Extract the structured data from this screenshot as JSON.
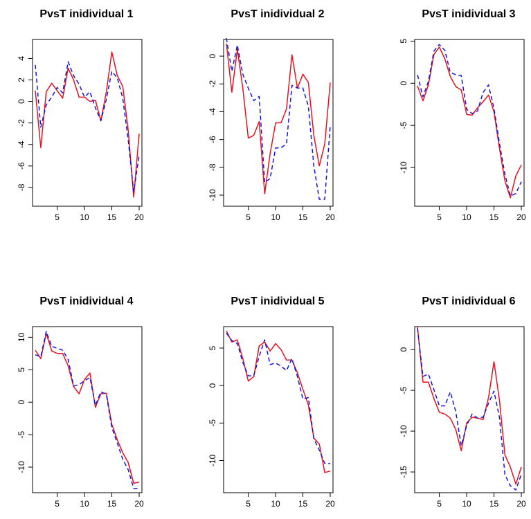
{
  "colors": {
    "predicted": "#e8111d",
    "true": "#1414e0",
    "axis": "#000000"
  },
  "chart_data": [
    {
      "type": "line",
      "title": "PvsT inidividual 1",
      "x": [
        1,
        2,
        3,
        4,
        5,
        6,
        7,
        8,
        9,
        10,
        11,
        12,
        13,
        14,
        15,
        16,
        17,
        18,
        19,
        20
      ],
      "xticks": [
        5,
        10,
        15,
        20
      ],
      "yticks": [
        -8,
        -6,
        -4,
        -2,
        0,
        2,
        4
      ],
      "ylim": [
        -9.1,
        4.8
      ],
      "series": [
        {
          "style": "solid",
          "color": "#e8111d",
          "values": [
            1.0,
            -4.3,
            0.9,
            1.7,
            1.0,
            0.3,
            3.1,
            2.0,
            0.4,
            0.4,
            0.0,
            0.1,
            -1.8,
            0.9,
            4.6,
            2.4,
            1.4,
            -2.7,
            -8.9,
            -3.0
          ]
        },
        {
          "style": "dashed",
          "color": "#1414e0",
          "values": [
            3.4,
            -2.4,
            -0.3,
            0.4,
            1.3,
            0.8,
            3.7,
            2.4,
            1.6,
            0.4,
            0.9,
            -0.6,
            -1.8,
            0.2,
            2.8,
            2.2,
            0.3,
            -3.6,
            -8.4,
            -5.0
          ]
        }
      ]
    },
    {
      "type": "line",
      "title": "PvsT inidividual 2",
      "x": [
        1,
        2,
        3,
        4,
        5,
        6,
        7,
        8,
        9,
        10,
        11,
        12,
        13,
        14,
        15,
        16,
        17,
        18,
        19,
        20
      ],
      "xticks": [
        5,
        10,
        15,
        20
      ],
      "yticks": [
        -10,
        -8,
        -6,
        -4,
        -2,
        0
      ],
      "ylim": [
        -10.3,
        1.3
      ],
      "series": [
        {
          "style": "solid",
          "color": "#e8111d",
          "values": [
            0.9,
            -2.6,
            0.5,
            -2.3,
            -5.9,
            -5.7,
            -4.7,
            -9.9,
            -7.0,
            -4.8,
            -4.8,
            -3.8,
            0.1,
            -2.3,
            -1.3,
            -1.9,
            -5.7,
            -7.9,
            -6.3,
            -1.9
          ]
        },
        {
          "style": "dashed",
          "color": "#1414e0",
          "values": [
            1.3,
            -1.1,
            0.8,
            -1.3,
            -2.3,
            -3.2,
            -2.9,
            -9.1,
            -8.8,
            -6.6,
            -6.6,
            -6.3,
            -2.1,
            -2.3,
            -2.3,
            -3.6,
            -7.9,
            -10.3,
            -10.3,
            -5.0
          ]
        }
      ]
    },
    {
      "type": "line",
      "title": "PvsT inidividual 3",
      "x": [
        1,
        2,
        3,
        4,
        5,
        6,
        7,
        8,
        9,
        10,
        11,
        12,
        13,
        14,
        15,
        16,
        17,
        18,
        19,
        20
      ],
      "xticks": [
        5,
        10,
        15,
        20
      ],
      "yticks": [
        -10,
        -5,
        0,
        5
      ],
      "ylim": [
        -13.7,
        5.2
      ],
      "series": [
        {
          "style": "solid",
          "color": "#e8111d",
          "values": [
            -0.3,
            -2.1,
            -0.2,
            3.4,
            4.3,
            2.9,
            0.8,
            -0.4,
            -0.8,
            -3.7,
            -3.8,
            -2.9,
            -2.2,
            -1.4,
            -3.4,
            -7.7,
            -11.6,
            -13.6,
            -11.0,
            -9.7
          ]
        },
        {
          "style": "dashed",
          "color": "#1414e0",
          "values": [
            1.0,
            -1.6,
            0.2,
            3.8,
            4.6,
            3.9,
            1.3,
            1.0,
            0.9,
            -3.1,
            -3.6,
            -3.3,
            -1.1,
            -0.2,
            -3.0,
            -7.1,
            -10.8,
            -13.4,
            -13.1,
            -11.7
          ]
        }
      ]
    },
    {
      "type": "line",
      "title": "PvsT inidividual 4",
      "x": [
        1,
        2,
        3,
        4,
        5,
        6,
        7,
        8,
        9,
        10,
        11,
        12,
        13,
        14,
        15,
        16,
        17,
        18,
        19,
        20
      ],
      "xticks": [
        5,
        10,
        15,
        20
      ],
      "yticks": [
        -10,
        -5,
        0,
        5,
        10
      ],
      "ylim": [
        -13.3,
        11.0
      ],
      "series": [
        {
          "style": "solid",
          "color": "#e8111d",
          "values": [
            8.0,
            6.7,
            10.6,
            7.9,
            7.5,
            7.5,
            5.6,
            2.4,
            1.3,
            3.5,
            4.5,
            -0.8,
            1.3,
            1.4,
            -3.4,
            -5.8,
            -7.8,
            -9.3,
            -12.5,
            -12.3
          ]
        },
        {
          "style": "dashed",
          "color": "#1414e0",
          "values": [
            7.3,
            7.0,
            10.9,
            8.6,
            8.3,
            8.0,
            6.6,
            2.5,
            2.7,
            3.3,
            3.8,
            -0.5,
            1.6,
            1.2,
            -3.9,
            -6.3,
            -8.8,
            -10.4,
            -13.3,
            -13.3
          ]
        }
      ]
    },
    {
      "type": "line",
      "title": "PvsT inidividual 5",
      "x": [
        1,
        2,
        3,
        4,
        5,
        6,
        7,
        8,
        9,
        10,
        11,
        12,
        13,
        14,
        15,
        16,
        17,
        18,
        19,
        20
      ],
      "xticks": [
        5,
        10,
        15,
        20
      ],
      "yticks": [
        -10,
        -5,
        0,
        5
      ],
      "ylim": [
        -11.8,
        7.4
      ],
      "series": [
        {
          "style": "solid",
          "color": "#e8111d",
          "values": [
            7.3,
            5.8,
            6.1,
            3.6,
            0.6,
            1.2,
            5.3,
            5.8,
            4.6,
            5.6,
            4.8,
            3.4,
            3.4,
            1.7,
            -0.5,
            -2.6,
            -7.0,
            -7.8,
            -11.6,
            -11.4
          ]
        },
        {
          "style": "dashed",
          "color": "#1414e0",
          "values": [
            7.0,
            6.0,
            5.6,
            3.1,
            1.3,
            1.3,
            3.9,
            6.1,
            2.8,
            3.0,
            2.6,
            2.0,
            3.6,
            1.2,
            -1.8,
            -1.6,
            -7.1,
            -8.6,
            -10.4,
            -10.4
          ]
        }
      ]
    },
    {
      "type": "line",
      "title": "PvsT inidividual 6",
      "x": [
        1,
        2,
        3,
        4,
        5,
        6,
        7,
        8,
        9,
        10,
        11,
        12,
        13,
        14,
        15,
        16,
        17,
        18,
        19,
        20
      ],
      "xticks": [
        5,
        10,
        15,
        20
      ],
      "yticks": [
        -15,
        -10,
        -5,
        0
      ],
      "ylim": [
        -17.2,
        2.8
      ],
      "series": [
        {
          "style": "solid",
          "color": "#e8111d",
          "values": [
            2.8,
            -4.0,
            -4.0,
            -6.0,
            -7.7,
            -7.9,
            -8.4,
            -9.8,
            -12.4,
            -9.0,
            -8.3,
            -8.4,
            -8.6,
            -5.9,
            -1.5,
            -6.2,
            -12.9,
            -14.4,
            -16.5,
            -14.4
          ]
        },
        {
          "style": "dashed",
          "color": "#1414e0",
          "values": [
            2.6,
            -3.3,
            -3.0,
            -4.9,
            -6.9,
            -6.9,
            -5.2,
            -7.6,
            -11.8,
            -9.3,
            -7.9,
            -8.4,
            -8.3,
            -6.6,
            -5.1,
            -8.3,
            -15.3,
            -16.7,
            -17.2,
            -15.3
          ]
        }
      ]
    }
  ]
}
